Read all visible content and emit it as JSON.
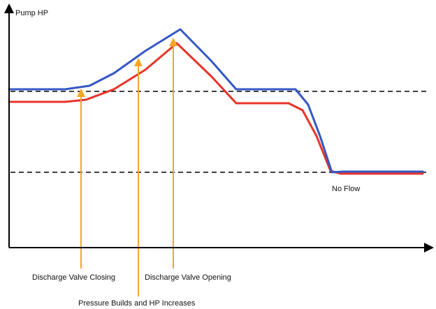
{
  "chart_data": {
    "type": "line",
    "ylabel": "Pump HP",
    "xlabel": "",
    "grid": false,
    "legend": "none",
    "colors": {
      "series_red": "#e8332a",
      "series_blue": "#3457c5",
      "annotation": "#f5a623",
      "axis": "#000000",
      "reference": "#000000"
    },
    "series": [
      {
        "values": [
          [
            0,
            146
          ],
          [
            80,
            146
          ],
          [
            110,
            143
          ],
          [
            150,
            128
          ],
          [
            195,
            100
          ],
          [
            240,
            62
          ],
          [
            290,
            110
          ],
          [
            325,
            148
          ],
          [
            400,
            148
          ],
          [
            420,
            158
          ],
          [
            440,
            195
          ],
          [
            460,
            245
          ],
          [
            475,
            249
          ],
          [
            540,
            249
          ],
          [
            592,
            249
          ]
        ]
      },
      {
        "values": [
          [
            0,
            128
          ],
          [
            80,
            128
          ],
          [
            115,
            123
          ],
          [
            150,
            105
          ],
          [
            195,
            73
          ],
          [
            245,
            42
          ],
          [
            290,
            88
          ],
          [
            325,
            128
          ],
          [
            410,
            128
          ],
          [
            428,
            150
          ],
          [
            445,
            195
          ],
          [
            462,
            247
          ],
          [
            478,
            246
          ],
          [
            540,
            246
          ],
          [
            592,
            246
          ]
        ]
      }
    ],
    "reference_lines": [
      {
        "y": 131,
        "style": "dashed"
      },
      {
        "y": 247,
        "style": "dashed"
      }
    ],
    "annotations": [
      {
        "text": "Discharge Valve Closing",
        "x": 103,
        "tip_y": 127,
        "label_row": 1
      },
      {
        "text": "Pressure Builds and HP Increases",
        "x": 185,
        "tip_y": 83,
        "label_row": 2
      },
      {
        "text": "Discharge Valve Opening",
        "x": 235,
        "tip_y": 54,
        "label_row": 1
      },
      {
        "text": "No Flow",
        "x": 488,
        "y": 270,
        "arrow": false
      }
    ]
  }
}
